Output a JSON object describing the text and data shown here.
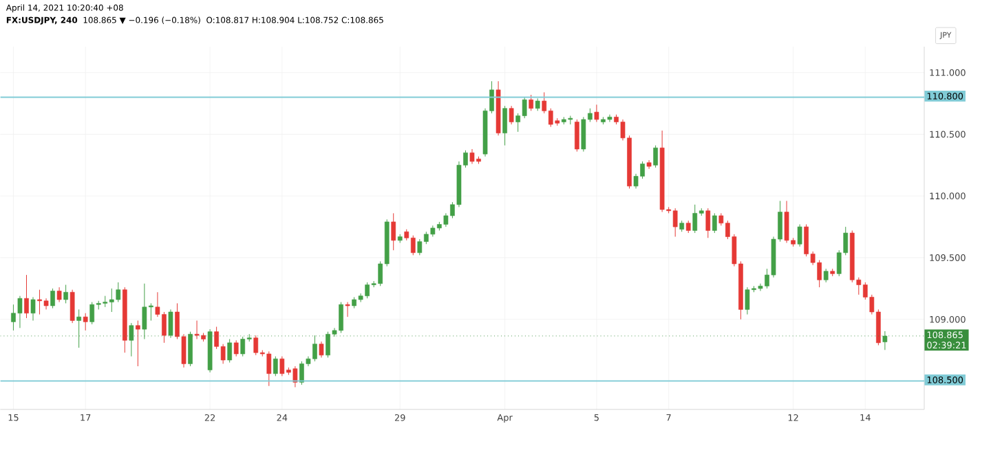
{
  "chart_data": {
    "type": "candlestick",
    "title": "FX:USDJPY, 240",
    "ylabel": "JPY",
    "annotations": [
      "April 14, 2021 10:20:40 +08",
      "108.865 ▼ −0.196 (−0.18%)",
      "O:108.817 H:108.904 L:108.752 C:108.865",
      "02:39:21"
    ],
    "categories": [
      "15",
      null,
      null,
      null,
      null,
      null,
      null,
      null,
      null,
      null,
      null,
      "17",
      null,
      null,
      null,
      null,
      null,
      null,
      null,
      null,
      null,
      null,
      null,
      null,
      null,
      null,
      null,
      null,
      null,
      null,
      "22",
      null,
      null,
      null,
      null,
      null,
      null,
      null,
      null,
      null,
      null,
      "24",
      null,
      null,
      null,
      null,
      null,
      null,
      null,
      null,
      null,
      null,
      null,
      null,
      null,
      null,
      null,
      null,
      null,
      "29",
      null,
      null,
      null,
      null,
      null,
      null,
      null,
      null,
      null,
      null,
      null,
      null,
      null,
      null,
      null,
      "Apr",
      null,
      null,
      null,
      null,
      null,
      null,
      null,
      null,
      null,
      null,
      null,
      null,
      null,
      "5",
      null,
      null,
      null,
      null,
      null,
      null,
      null,
      null,
      null,
      null,
      "7",
      null,
      null,
      null,
      null,
      null,
      null,
      null,
      null,
      null,
      null,
      null,
      null,
      null,
      null,
      null,
      null,
      null,
      null,
      "12",
      null,
      null,
      null,
      null,
      null,
      null,
      null,
      null,
      null,
      null,
      "14",
      null,
      null,
      null
    ],
    "ohlc": [
      [
        108.98,
        109.12,
        108.91,
        109.05
      ],
      [
        109.05,
        109.19,
        108.93,
        109.17
      ],
      [
        109.17,
        109.36,
        109.01,
        109.05
      ],
      [
        109.05,
        109.18,
        108.99,
        109.16
      ],
      [
        109.16,
        109.24,
        109.04,
        109.15
      ],
      [
        109.15,
        109.17,
        109.08,
        109.11
      ],
      [
        109.11,
        109.25,
        109.09,
        109.23
      ],
      [
        109.23,
        109.26,
        109.14,
        109.16
      ],
      [
        109.16,
        109.28,
        109.13,
        109.22
      ],
      [
        109.22,
        109.24,
        108.97,
        108.99
      ],
      [
        108.99,
        109.08,
        108.77,
        109.02
      ],
      [
        109.02,
        109.05,
        108.91,
        108.98
      ],
      [
        108.98,
        109.14,
        108.96,
        109.12
      ],
      [
        109.12,
        109.15,
        109.08,
        109.13
      ],
      [
        109.13,
        109.19,
        109.1,
        109.14
      ],
      [
        109.14,
        109.25,
        109.06,
        109.16
      ],
      [
        109.16,
        109.3,
        109.14,
        109.24
      ],
      [
        109.24,
        109.26,
        108.73,
        108.83
      ],
      [
        108.83,
        108.97,
        108.7,
        108.95
      ],
      [
        108.95,
        108.99,
        108.62,
        108.92
      ],
      [
        108.92,
        109.29,
        108.84,
        109.1
      ],
      [
        109.1,
        109.13,
        108.99,
        109.11
      ],
      [
        109.1,
        109.22,
        109.02,
        109.04
      ],
      [
        109.04,
        109.06,
        108.81,
        108.87
      ],
      [
        108.87,
        109.08,
        108.85,
        109.06
      ],
      [
        109.06,
        109.13,
        108.84,
        108.86
      ],
      [
        108.86,
        108.88,
        108.61,
        108.64
      ],
      [
        108.64,
        108.9,
        108.62,
        108.88
      ],
      [
        108.88,
        108.99,
        108.84,
        108.87
      ],
      [
        108.87,
        108.89,
        108.82,
        108.84
      ],
      [
        108.59,
        108.92,
        108.57,
        108.9
      ],
      [
        108.9,
        108.94,
        108.76,
        108.78
      ],
      [
        108.78,
        108.8,
        108.64,
        108.67
      ],
      [
        108.67,
        108.84,
        108.65,
        108.81
      ],
      [
        108.81,
        108.83,
        108.7,
        108.72
      ],
      [
        108.72,
        108.86,
        108.7,
        108.84
      ],
      [
        108.84,
        108.88,
        108.82,
        108.85
      ],
      [
        108.85,
        108.87,
        108.71,
        108.73
      ],
      [
        108.73,
        108.75,
        108.7,
        108.72
      ],
      [
        108.72,
        108.74,
        108.46,
        108.56
      ],
      [
        108.56,
        108.7,
        108.54,
        108.68
      ],
      [
        108.68,
        108.7,
        108.54,
        108.56
      ],
      [
        108.59,
        108.61,
        108.55,
        108.57
      ],
      [
        108.6,
        108.62,
        108.45,
        108.49
      ],
      [
        108.49,
        108.66,
        108.47,
        108.64
      ],
      [
        108.64,
        108.7,
        108.62,
        108.68
      ],
      [
        108.68,
        108.87,
        108.66,
        108.8
      ],
      [
        108.8,
        108.82,
        108.69,
        108.71
      ],
      [
        108.71,
        108.9,
        108.69,
        108.88
      ],
      [
        108.88,
        108.93,
        108.86,
        108.91
      ],
      [
        108.91,
        109.14,
        108.89,
        109.12
      ],
      [
        109.12,
        109.14,
        109.02,
        109.11
      ],
      [
        109.11,
        109.18,
        109.09,
        109.16
      ],
      [
        109.16,
        109.21,
        109.14,
        109.19
      ],
      [
        109.19,
        109.3,
        109.17,
        109.28
      ],
      [
        109.28,
        109.31,
        109.26,
        109.29
      ],
      [
        109.29,
        109.47,
        109.27,
        109.45
      ],
      [
        109.45,
        109.81,
        109.43,
        109.79
      ],
      [
        109.79,
        109.86,
        109.56,
        109.64
      ],
      [
        109.64,
        109.69,
        109.62,
        109.67
      ],
      [
        109.71,
        109.73,
        109.64,
        109.66
      ],
      [
        109.66,
        109.68,
        109.52,
        109.54
      ],
      [
        109.54,
        109.65,
        109.52,
        109.63
      ],
      [
        109.63,
        109.71,
        109.61,
        109.69
      ],
      [
        109.69,
        109.76,
        109.67,
        109.74
      ],
      [
        109.74,
        109.79,
        109.72,
        109.77
      ],
      [
        109.77,
        109.86,
        109.75,
        109.84
      ],
      [
        109.84,
        109.95,
        109.82,
        109.93
      ],
      [
        109.93,
        110.28,
        109.91,
        110.25
      ],
      [
        110.25,
        110.37,
        110.23,
        110.35
      ],
      [
        110.35,
        110.38,
        110.26,
        110.28
      ],
      [
        110.3,
        110.32,
        110.26,
        110.28
      ],
      [
        110.34,
        110.71,
        110.32,
        110.69
      ],
      [
        110.69,
        110.93,
        110.67,
        110.86
      ],
      [
        110.86,
        110.93,
        110.49,
        110.51
      ],
      [
        110.51,
        110.73,
        110.41,
        110.71
      ],
      [
        110.71,
        110.73,
        110.58,
        110.6
      ],
      [
        110.6,
        110.67,
        110.52,
        110.65
      ],
      [
        110.65,
        110.8,
        110.63,
        110.78
      ],
      [
        110.78,
        110.82,
        110.69,
        110.71
      ],
      [
        110.71,
        110.79,
        110.69,
        110.77
      ],
      [
        110.77,
        110.84,
        110.67,
        110.69
      ],
      [
        110.69,
        110.71,
        110.56,
        110.58
      ],
      [
        110.61,
        110.63,
        110.57,
        110.59
      ],
      [
        110.6,
        110.64,
        110.58,
        110.62
      ],
      [
        110.62,
        110.65,
        110.58,
        110.63
      ],
      [
        110.6,
        110.62,
        110.36,
        110.38
      ],
      [
        110.38,
        110.64,
        110.36,
        110.62
      ],
      [
        110.62,
        110.71,
        110.6,
        110.67
      ],
      [
        110.68,
        110.74,
        110.6,
        110.62
      ],
      [
        110.6,
        110.64,
        110.58,
        110.62
      ],
      [
        110.62,
        110.66,
        110.6,
        110.64
      ],
      [
        110.64,
        110.66,
        110.58,
        110.6
      ],
      [
        110.6,
        110.62,
        110.45,
        110.47
      ],
      [
        110.47,
        110.49,
        110.06,
        110.08
      ],
      [
        110.08,
        110.18,
        110.06,
        110.16
      ],
      [
        110.16,
        110.28,
        110.14,
        110.26
      ],
      [
        110.27,
        110.29,
        110.22,
        110.24
      ],
      [
        110.25,
        110.41,
        110.23,
        110.39
      ],
      [
        110.39,
        110.53,
        109.87,
        109.89
      ],
      [
        109.89,
        109.91,
        109.86,
        109.88
      ],
      [
        109.88,
        109.9,
        109.67,
        109.75
      ],
      [
        109.73,
        109.8,
        109.71,
        109.78
      ],
      [
        109.78,
        109.8,
        109.7,
        109.72
      ],
      [
        109.72,
        109.93,
        109.7,
        109.86
      ],
      [
        109.86,
        109.9,
        109.84,
        109.88
      ],
      [
        109.88,
        109.9,
        109.66,
        109.72
      ],
      [
        109.72,
        109.86,
        109.7,
        109.84
      ],
      [
        109.84,
        109.86,
        109.76,
        109.78
      ],
      [
        109.78,
        109.8,
        109.65,
        109.67
      ],
      [
        109.67,
        109.69,
        109.43,
        109.45
      ],
      [
        109.45,
        109.47,
        109.0,
        109.08
      ],
      [
        109.08,
        109.26,
        109.04,
        109.24
      ],
      [
        109.24,
        109.27,
        109.22,
        109.25
      ],
      [
        109.25,
        109.29,
        109.23,
        109.27
      ],
      [
        109.27,
        109.41,
        109.25,
        109.36
      ],
      [
        109.36,
        109.67,
        109.34,
        109.65
      ],
      [
        109.65,
        109.96,
        109.63,
        109.87
      ],
      [
        109.87,
        109.96,
        109.62,
        109.64
      ],
      [
        109.64,
        109.66,
        109.59,
        109.61
      ],
      [
        109.61,
        109.77,
        109.59,
        109.75
      ],
      [
        109.75,
        109.77,
        109.51,
        109.53
      ],
      [
        109.53,
        109.55,
        109.44,
        109.46
      ],
      [
        109.46,
        109.48,
        109.26,
        109.32
      ],
      [
        109.32,
        109.41,
        109.3,
        109.39
      ],
      [
        109.39,
        109.41,
        109.35,
        109.37
      ],
      [
        109.37,
        109.56,
        109.35,
        109.54
      ],
      [
        109.54,
        109.75,
        109.52,
        109.7
      ],
      [
        109.7,
        109.72,
        109.3,
        109.32
      ],
      [
        109.32,
        109.34,
        109.2,
        109.28
      ],
      [
        109.28,
        109.3,
        109.16,
        109.18
      ],
      [
        109.18,
        109.2,
        109.04,
        109.06
      ],
      [
        109.06,
        109.08,
        108.79,
        108.81
      ],
      [
        108.817,
        108.904,
        108.752,
        108.865
      ]
    ],
    "ylim": [
      108.27,
      111.21
    ],
    "yticks": [
      {
        "value": 109,
        "label": "109.000"
      },
      {
        "value": 109.5,
        "label": "109.500"
      },
      {
        "value": 110,
        "label": "110.000"
      },
      {
        "value": 110.5,
        "label": "110.500"
      },
      {
        "value": 111,
        "label": "111.000"
      }
    ],
    "ref_lines": [
      {
        "axis": "y",
        "value": 110.8,
        "label": "110.800",
        "color": "#80cbd6"
      },
      {
        "axis": "y",
        "value": 108.5,
        "label": "108.500",
        "color": "#80cbd6"
      },
      {
        "axis": "y",
        "value": 108.865,
        "label": "108.865",
        "color": "#388e3c",
        "line_style": "dotted"
      }
    ],
    "grid": true
  }
}
